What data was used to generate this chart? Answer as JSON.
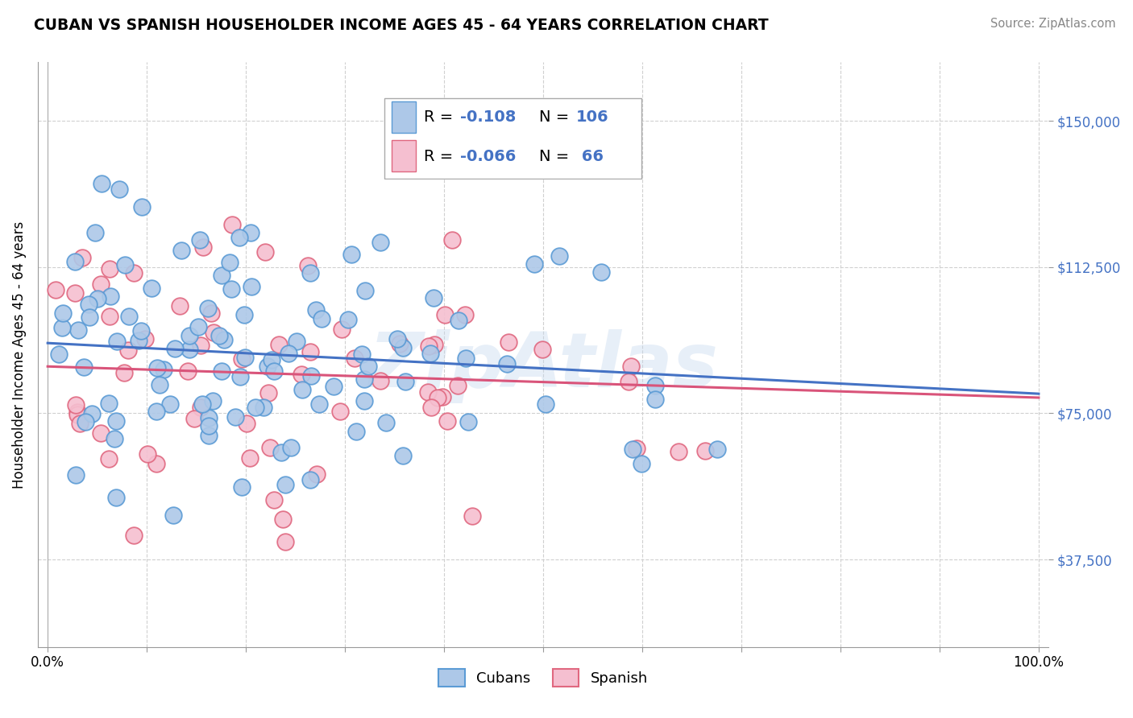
{
  "title": "CUBAN VS SPANISH HOUSEHOLDER INCOME AGES 45 - 64 YEARS CORRELATION CHART",
  "source": "Source: ZipAtlas.com",
  "ylabel": "Householder Income Ages 45 - 64 years",
  "xlim": [
    -0.01,
    1.01
  ],
  "ylim": [
    15000,
    165000
  ],
  "yticks": [
    37500,
    75000,
    112500,
    150000
  ],
  "ytick_labels": [
    "$37,500",
    "$75,000",
    "$112,500",
    "$150,000"
  ],
  "xticks": [
    0.0,
    0.1,
    0.2,
    0.3,
    0.4,
    0.5,
    0.6,
    0.7,
    0.8,
    0.9,
    1.0
  ],
  "xtick_labels": [
    "0.0%",
    "",
    "",
    "",
    "",
    "",
    "",
    "",
    "",
    "",
    "100.0%"
  ],
  "cuban_color": "#adc8e8",
  "spanish_color": "#f5bfd0",
  "cuban_edge_color": "#5b9bd5",
  "spanish_edge_color": "#e06880",
  "line_cuban_color": "#4472c4",
  "line_spanish_color": "#d9547a",
  "watermark": "ZipAtlas",
  "cuban_R": -0.108,
  "cuban_N": 106,
  "spanish_R": -0.066,
  "spanish_N": 66,
  "cuban_intercept": 93000,
  "cuban_slope": -13000,
  "spanish_intercept": 87000,
  "spanish_slope": -8000
}
